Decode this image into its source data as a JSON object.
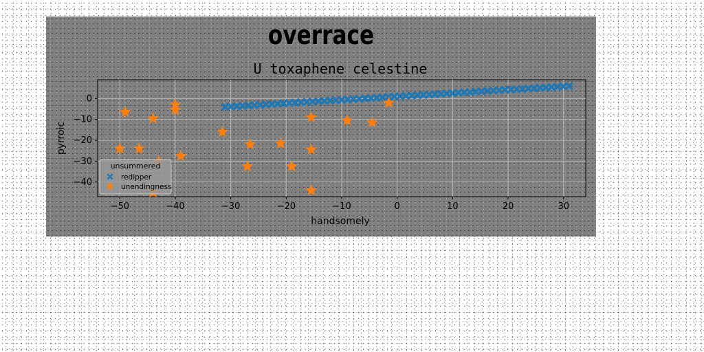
{
  "chart_data": {
    "type": "scatter",
    "suptitle": "overrace",
    "title": "U toxaphene celestine",
    "xlabel": "handsomely",
    "ylabel": "pyrroic",
    "xlim": [
      -54,
      34
    ],
    "ylim": [
      -47,
      9
    ],
    "xticks": [
      -50,
      -40,
      -30,
      -20,
      -10,
      0,
      10,
      20,
      30
    ],
    "yticks": [
      0,
      -10,
      -20,
      -30,
      -40
    ],
    "grid": true,
    "legend": {
      "title": "unsummered",
      "placement": "lower-left"
    },
    "series": [
      {
        "name": "redipper",
        "marker": "X",
        "color": "#1f77b4",
        "x_range": [
          -31,
          31
        ],
        "y_range": [
          -4,
          6
        ],
        "point_count": 60
      },
      {
        "name": "unendingness",
        "marker": "star",
        "color": "#ff7f0e",
        "points": [
          [
            -49,
            -6.5
          ],
          [
            -44,
            -9.5
          ],
          [
            -40,
            -3
          ],
          [
            -40,
            -5.5
          ],
          [
            -31.5,
            -16
          ],
          [
            -50,
            -24
          ],
          [
            -46.5,
            -24
          ],
          [
            -43,
            -30
          ],
          [
            -39,
            -27.5
          ],
          [
            -44,
            -45
          ],
          [
            -26.5,
            -22
          ],
          [
            -27,
            -32.5
          ],
          [
            -21,
            -21.5
          ],
          [
            -19,
            -32.5
          ],
          [
            -15.5,
            -9
          ],
          [
            -15.5,
            -24.5
          ],
          [
            -15.5,
            -44
          ],
          [
            -9,
            -10.5
          ],
          [
            -4.5,
            -11.5
          ],
          [
            -1.5,
            -2
          ]
        ]
      }
    ]
  }
}
